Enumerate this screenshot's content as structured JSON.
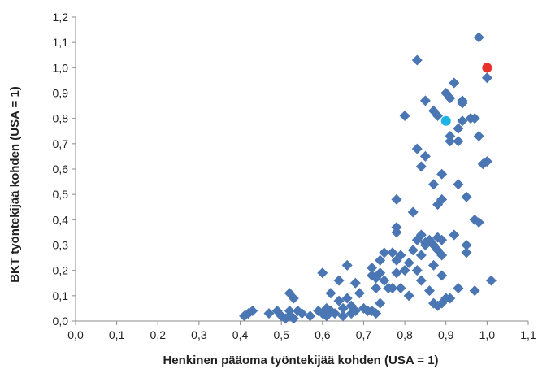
{
  "chart_data": {
    "type": "scatter",
    "title": "",
    "xlabel": "Henkinen pääoma työntekijää kohden (USA = 1)",
    "ylabel": "BKT työntekijää kohden (USA = 1)",
    "xlim": [
      0.0,
      1.1
    ],
    "ylim": [
      0.0,
      1.2
    ],
    "x_ticks": [
      "0,0",
      "0,1",
      "0,2",
      "0,3",
      "0,4",
      "0,5",
      "0,6",
      "0,7",
      "0,8",
      "0,9",
      "1,0",
      "1,1"
    ],
    "y_ticks": [
      "0,0",
      "0,1",
      "0,2",
      "0,3",
      "0,4",
      "0,5",
      "0,6",
      "0,7",
      "0,8",
      "0,9",
      "1,0",
      "1,1",
      "1,2"
    ],
    "grid": false,
    "legend": "none",
    "colors": {
      "series": "#4a76b4",
      "highlight_red": "#e8312a",
      "highlight_cyan": "#1eb4e6",
      "axis": "#8c8c8c"
    },
    "series": [
      {
        "marker": "diamond",
        "color": "#4a76b4",
        "points": [
          [
            0.41,
            0.02
          ],
          [
            0.42,
            0.03
          ],
          [
            0.43,
            0.04
          ],
          [
            0.47,
            0.03
          ],
          [
            0.49,
            0.04
          ],
          [
            0.5,
            0.02
          ],
          [
            0.51,
            0.01
          ],
          [
            0.52,
            0.11
          ],
          [
            0.52,
            0.04
          ],
          [
            0.52,
            0.02
          ],
          [
            0.53,
            0.09
          ],
          [
            0.53,
            0.01
          ],
          [
            0.54,
            0.04
          ],
          [
            0.55,
            0.03
          ],
          [
            0.57,
            0.02
          ],
          [
            0.59,
            0.04
          ],
          [
            0.6,
            0.03
          ],
          [
            0.6,
            0.19
          ],
          [
            0.61,
            0.05
          ],
          [
            0.61,
            0.02
          ],
          [
            0.62,
            0.11
          ],
          [
            0.62,
            0.04
          ],
          [
            0.63,
            0.03
          ],
          [
            0.64,
            0.16
          ],
          [
            0.64,
            0.08
          ],
          [
            0.65,
            0.05
          ],
          [
            0.65,
            0.02
          ],
          [
            0.66,
            0.22
          ],
          [
            0.66,
            0.09
          ],
          [
            0.67,
            0.06
          ],
          [
            0.67,
            0.03
          ],
          [
            0.68,
            0.15
          ],
          [
            0.68,
            0.04
          ],
          [
            0.69,
            0.11
          ],
          [
            0.7,
            0.05
          ],
          [
            0.71,
            0.04
          ],
          [
            0.72,
            0.21
          ],
          [
            0.72,
            0.18
          ],
          [
            0.72,
            0.04
          ],
          [
            0.73,
            0.17
          ],
          [
            0.73,
            0.13
          ],
          [
            0.73,
            0.03
          ],
          [
            0.74,
            0.24
          ],
          [
            0.74,
            0.19
          ],
          [
            0.74,
            0.07
          ],
          [
            0.75,
            0.27
          ],
          [
            0.75,
            0.16
          ],
          [
            0.76,
            0.13
          ],
          [
            0.77,
            0.27
          ],
          [
            0.77,
            0.13
          ],
          [
            0.78,
            0.48
          ],
          [
            0.78,
            0.37
          ],
          [
            0.78,
            0.35
          ],
          [
            0.78,
            0.24
          ],
          [
            0.78,
            0.19
          ],
          [
            0.79,
            0.26
          ],
          [
            0.79,
            0.13
          ],
          [
            0.8,
            0.81
          ],
          [
            0.8,
            0.2
          ],
          [
            0.81,
            0.23
          ],
          [
            0.81,
            0.1
          ],
          [
            0.82,
            0.43
          ],
          [
            0.82,
            0.28
          ],
          [
            0.83,
            1.03
          ],
          [
            0.83,
            0.68
          ],
          [
            0.83,
            0.32
          ],
          [
            0.83,
            0.2
          ],
          [
            0.84,
            0.61
          ],
          [
            0.84,
            0.34
          ],
          [
            0.84,
            0.26
          ],
          [
            0.84,
            0.16
          ],
          [
            0.85,
            0.87
          ],
          [
            0.85,
            0.65
          ],
          [
            0.85,
            0.31
          ],
          [
            0.85,
            0.3
          ],
          [
            0.86,
            0.32
          ],
          [
            0.86,
            0.12
          ],
          [
            0.87,
            0.83
          ],
          [
            0.87,
            0.54
          ],
          [
            0.87,
            0.3
          ],
          [
            0.87,
            0.22
          ],
          [
            0.87,
            0.07
          ],
          [
            0.88,
            0.81
          ],
          [
            0.88,
            0.46
          ],
          [
            0.88,
            0.33
          ],
          [
            0.88,
            0.28
          ],
          [
            0.88,
            0.06
          ],
          [
            0.89,
            0.58
          ],
          [
            0.89,
            0.48
          ],
          [
            0.89,
            0.32
          ],
          [
            0.89,
            0.26
          ],
          [
            0.89,
            0.18
          ],
          [
            0.89,
            0.07
          ],
          [
            0.9,
            0.9
          ],
          [
            0.9,
            0.09
          ],
          [
            0.91,
            0.88
          ],
          [
            0.91,
            0.73
          ],
          [
            0.91,
            0.71
          ],
          [
            0.91,
            0.09
          ],
          [
            0.92,
            0.94
          ],
          [
            0.92,
            0.34
          ],
          [
            0.93,
            0.76
          ],
          [
            0.93,
            0.71
          ],
          [
            0.93,
            0.54
          ],
          [
            0.93,
            0.13
          ],
          [
            0.94,
            0.87
          ],
          [
            0.94,
            0.86
          ],
          [
            0.94,
            0.79
          ],
          [
            0.95,
            0.49
          ],
          [
            0.95,
            0.3
          ],
          [
            0.95,
            0.27
          ],
          [
            0.96,
            0.8
          ],
          [
            0.97,
            0.8
          ],
          [
            0.97,
            0.4
          ],
          [
            0.97,
            0.12
          ],
          [
            0.98,
            1.12
          ],
          [
            0.98,
            0.73
          ],
          [
            0.98,
            0.39
          ],
          [
            0.99,
            0.62
          ],
          [
            1.0,
            0.96
          ],
          [
            1.0,
            0.63
          ],
          [
            1.01,
            0.16
          ]
        ]
      },
      {
        "marker": "circle",
        "color": "#e8312a",
        "points": [
          [
            1.0,
            1.0
          ]
        ]
      },
      {
        "marker": "circle",
        "color": "#1eb4e6",
        "points": [
          [
            0.9,
            0.79
          ]
        ]
      }
    ]
  }
}
